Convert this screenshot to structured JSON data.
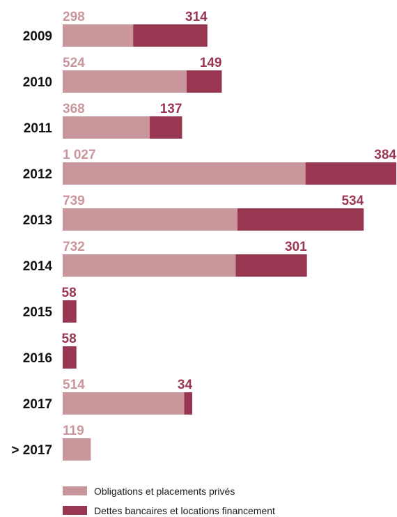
{
  "chart_data": {
    "type": "bar",
    "orientation": "horizontal",
    "stacked": true,
    "categories": [
      "2009",
      "2010",
      "2011",
      "2012",
      "2013",
      "2014",
      "2015",
      "2016",
      "2017",
      "> 2017"
    ],
    "series": [
      {
        "name": "Obligations et placements privés",
        "values": [
          298,
          524,
          368,
          1027,
          739,
          732,
          0,
          0,
          514,
          119
        ],
        "labels": [
          "298",
          "524",
          "368",
          "1 027",
          "739",
          "732",
          "",
          "",
          "514",
          "119"
        ]
      },
      {
        "name": "Dettes bancaires et locations financement",
        "values": [
          314,
          149,
          137,
          384,
          534,
          301,
          58,
          58,
          34,
          0
        ],
        "labels": [
          "314",
          "149",
          "137",
          "384",
          "534",
          "301",
          "58",
          "58",
          "34",
          ""
        ]
      }
    ],
    "xlim": [
      0,
      1411
    ],
    "grid": false,
    "legend_position": "bottom-left",
    "colors": [
      "#c9969c",
      "#993651"
    ]
  }
}
